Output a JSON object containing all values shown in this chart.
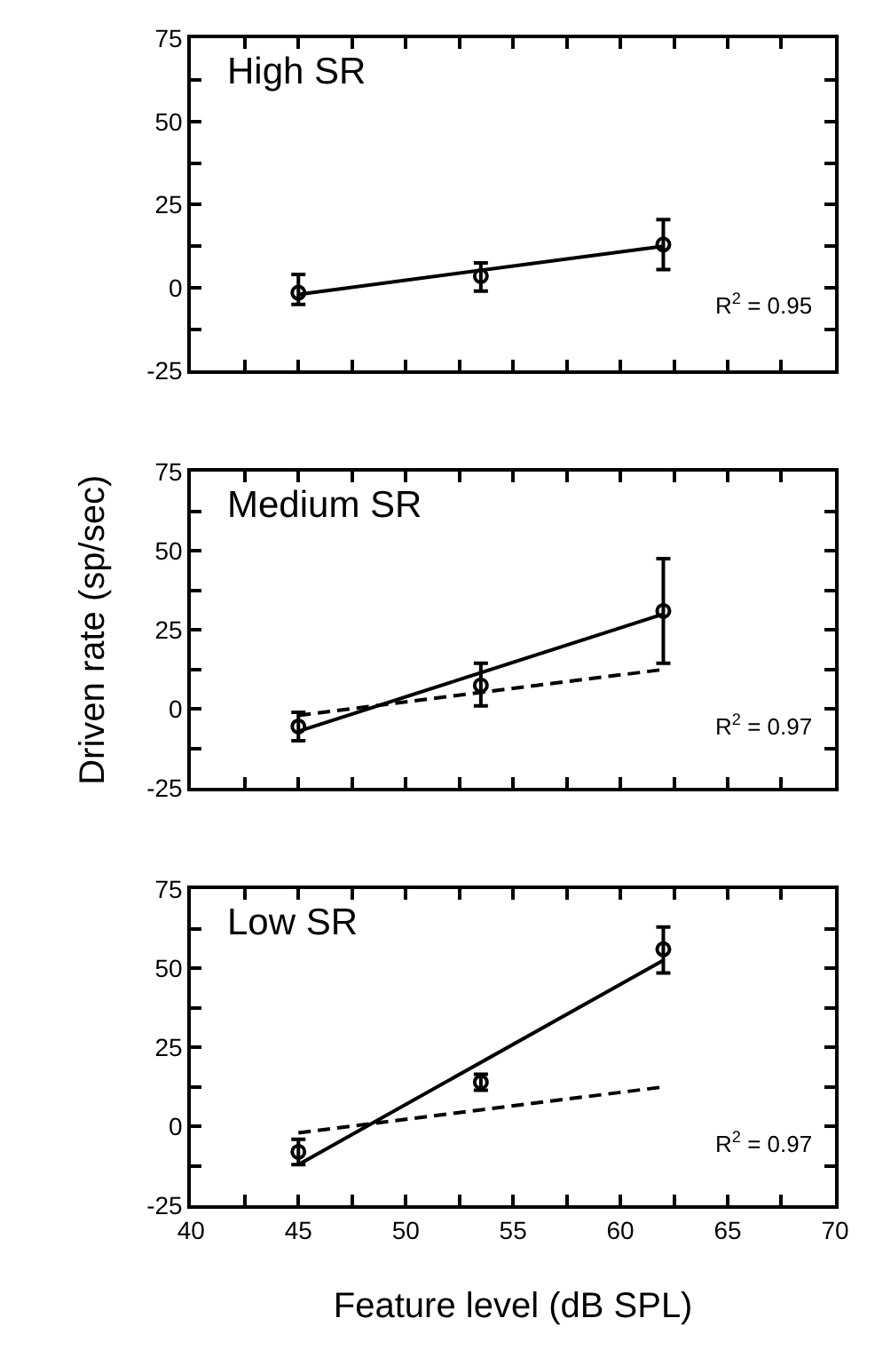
{
  "chart_data": [
    {
      "type": "scatter",
      "title": "High SR",
      "xlim": [
        40,
        70
      ],
      "ylim": [
        -25,
        75
      ],
      "tick_labels": "y",
      "xticks": [
        40,
        {
          "value": 42.5,
          "label": null
        },
        45,
        {
          "value": 47.5,
          "label": null
        },
        50,
        {
          "value": 52.5,
          "label": null
        },
        55,
        {
          "value": 57.5,
          "label": null
        },
        60,
        {
          "value": 62.5,
          "label": null
        },
        65,
        {
          "value": 67.5,
          "label": null
        },
        70
      ],
      "yticks": [
        -25,
        {
          "value": -12.5,
          "label": null
        },
        0,
        {
          "value": 12.5,
          "label": null
        },
        25,
        {
          "value": 37.5,
          "label": null
        },
        50,
        {
          "value": 62.5,
          "label": null
        },
        75
      ],
      "annotations": [
        "R$^{2}$ = 0.95"
      ],
      "series": [
        {
          "type": "scatter",
          "color": "#000000",
          "marker": "circle",
          "x": [
            45,
            53.5,
            62
          ],
          "values": [
            -1.5,
            3.5,
            13
          ],
          "errors": [
            [
              -5,
              4
            ],
            [
              -1,
              7.5
            ],
            [
              5.5,
              20.5
            ]
          ]
        },
        {
          "type": "line",
          "color": "#000000",
          "marker": "none",
          "line_style": "solid",
          "x": [
            45,
            62
          ],
          "values": [
            -2,
            12.5
          ]
        }
      ]
    },
    {
      "type": "scatter",
      "title": "Medium SR",
      "ylabel": "Driven rate (sp/sec)",
      "xlim": [
        40,
        70
      ],
      "ylim": [
        -25,
        75
      ],
      "tick_labels": "y",
      "xticks": [
        40,
        {
          "value": 42.5,
          "label": null
        },
        45,
        {
          "value": 47.5,
          "label": null
        },
        50,
        {
          "value": 52.5,
          "label": null
        },
        55,
        {
          "value": 57.5,
          "label": null
        },
        60,
        {
          "value": 62.5,
          "label": null
        },
        65,
        {
          "value": 67.5,
          "label": null
        },
        70
      ],
      "yticks": [
        -25,
        {
          "value": -12.5,
          "label": null
        },
        0,
        {
          "value": 12.5,
          "label": null
        },
        25,
        {
          "value": 37.5,
          "label": null
        },
        50,
        {
          "value": 62.5,
          "label": null
        },
        75
      ],
      "annotations": [
        "R$^{2}$ = 0.97"
      ],
      "series": [
        {
          "type": "scatter",
          "color": "#000000",
          "marker": "circle",
          "x": [
            45,
            53.5,
            62
          ],
          "values": [
            -5.5,
            7.5,
            31
          ],
          "errors": [
            [
              -10,
              -1
            ],
            [
              1,
              14.5
            ],
            [
              14.5,
              47.5
            ]
          ]
        },
        {
          "type": "line",
          "color": "#000000",
          "marker": "none",
          "line_style": "solid",
          "x": [
            45,
            62
          ],
          "values": [
            -7,
            30
          ]
        },
        {
          "type": "line",
          "color": "#000000",
          "marker": "none",
          "line_style": "dashed",
          "x": [
            45,
            62
          ],
          "values": [
            -2,
            12.5
          ]
        }
      ]
    },
    {
      "type": "scatter",
      "title": "Low SR",
      "xlabel": "Feature level (dB SPL)",
      "xlim": [
        40,
        70
      ],
      "ylim": [
        -25,
        75
      ],
      "xticks": [
        40,
        {
          "value": 42.5,
          "label": null
        },
        45,
        {
          "value": 47.5,
          "label": null
        },
        50,
        {
          "value": 52.5,
          "label": null
        },
        55,
        {
          "value": 57.5,
          "label": null
        },
        60,
        {
          "value": 62.5,
          "label": null
        },
        65,
        {
          "value": 67.5,
          "label": null
        },
        70
      ],
      "yticks": [
        -25,
        {
          "value": -12.5,
          "label": null
        },
        0,
        {
          "value": 12.5,
          "label": null
        },
        25,
        {
          "value": 37.5,
          "label": null
        },
        50,
        {
          "value": 62.5,
          "label": null
        },
        75
      ],
      "annotations": [
        "R$^{2}$ = 0.97"
      ],
      "series": [
        {
          "type": "scatter",
          "color": "#000000",
          "marker": "circle",
          "x": [
            45,
            53.5,
            62
          ],
          "values": [
            -8,
            14,
            56
          ],
          "errors": [
            [
              -12,
              -4
            ],
            [
              11.5,
              16.5
            ],
            [
              48.5,
              63
            ]
          ]
        },
        {
          "type": "line",
          "color": "#000000",
          "marker": "none",
          "line_style": "solid",
          "x": [
            45,
            62
          ],
          "values": [
            -12,
            52.5
          ]
        },
        {
          "type": "line",
          "color": "#000000",
          "marker": "none",
          "line_style": "dashed",
          "x": [
            45,
            62
          ],
          "values": [
            -2,
            12.5
          ]
        }
      ]
    }
  ]
}
